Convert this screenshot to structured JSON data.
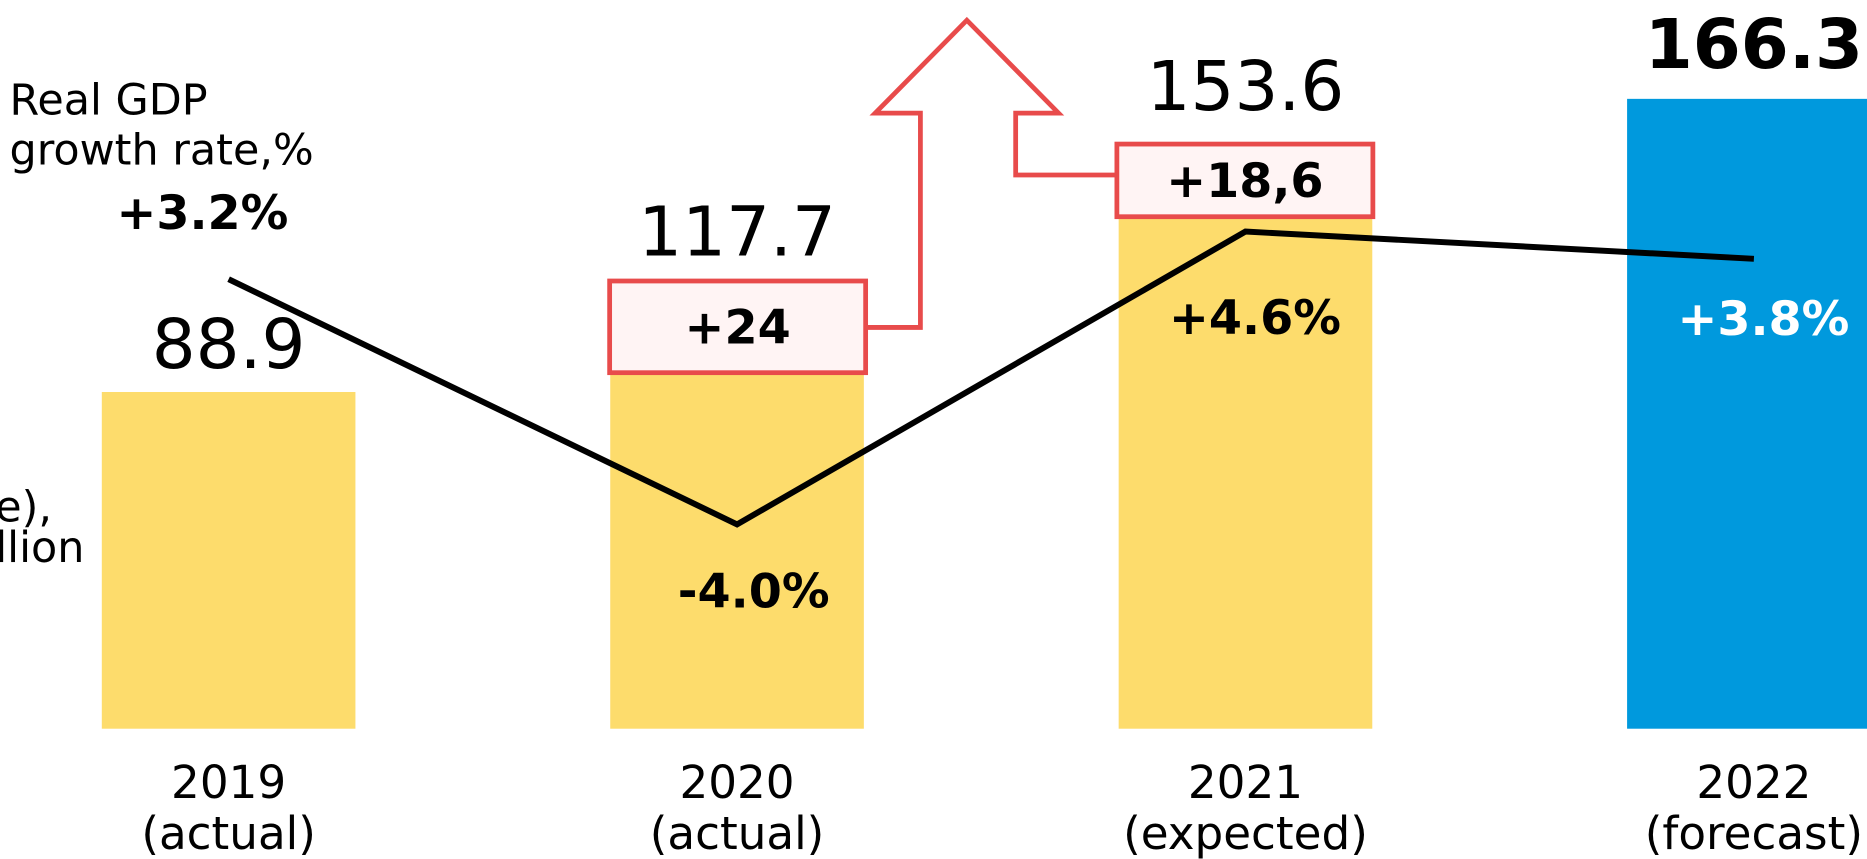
{
  "chart_data": {
    "type": "bar",
    "legend_label": "Real GDP growth rate,%",
    "left_labels": [
      "e),",
      "llion"
    ],
    "categories": [
      "2019 (actual)",
      "2020 (actual)",
      "2021 (expected)",
      "2022 (forecast)"
    ],
    "values": [
      88.9,
      117.7,
      153.6,
      166.3
    ],
    "colors": [
      "#fddc6c",
      "#fddc6c",
      "#fddc6c",
      "#0099dd"
    ],
    "ylim": [
      0,
      192.4
    ],
    "line": {
      "name": "Real GDP growth rate,%",
      "color": "#000000",
      "axis": "y2",
      "values": [
        3.2,
        -4.0,
        4.6,
        3.8
      ],
      "value_labels": [
        "+3.2%",
        "-4.0%",
        "+4.6%",
        "+3.8%"
      ]
    },
    "y2lim": [
      -10,
      11.4
    ],
    "annotations": [
      "+24",
      "+18,6"
    ]
  }
}
